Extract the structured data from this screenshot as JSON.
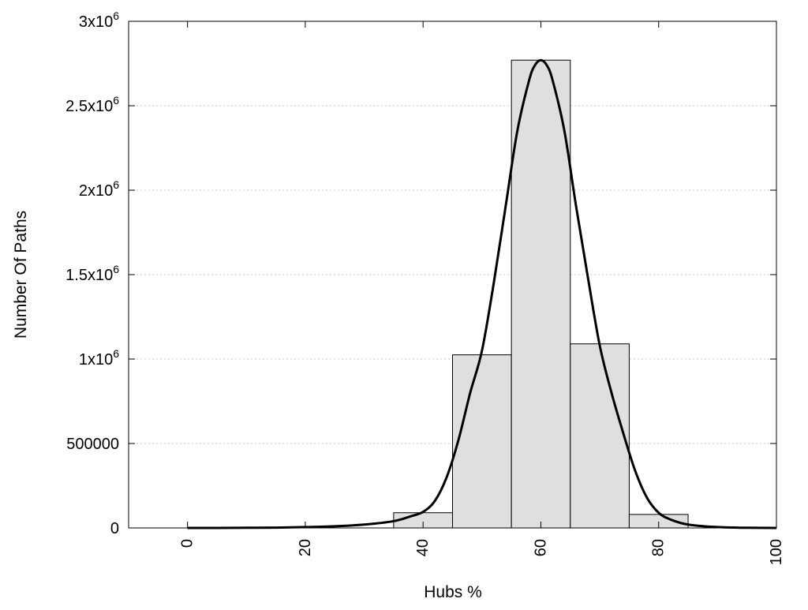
{
  "chart_data": {
    "type": "bar",
    "xlabel": "Hubs %",
    "ylabel": "Number Of Paths",
    "xlim": [
      -10,
      100
    ],
    "ylim": [
      0,
      3000000
    ],
    "x_ticks": [
      {
        "value": 0,
        "label": "0"
      },
      {
        "value": 20,
        "label": "20"
      },
      {
        "value": 40,
        "label": "40"
      },
      {
        "value": 60,
        "label": "60"
      },
      {
        "value": 80,
        "label": "80"
      },
      {
        "value": 100,
        "label": "100"
      }
    ],
    "y_ticks": [
      {
        "value": 0,
        "label": "0",
        "exp": ""
      },
      {
        "value": 500000,
        "label": "500000",
        "exp": ""
      },
      {
        "value": 1000000,
        "label": "1x10",
        "exp": "6"
      },
      {
        "value": 1500000,
        "label": "1.5x10",
        "exp": "6"
      },
      {
        "value": 2000000,
        "label": "2x10",
        "exp": "6"
      },
      {
        "value": 2500000,
        "label": "2.5x10",
        "exp": "6"
      },
      {
        "value": 3000000,
        "label": "3x10",
        "exp": "6"
      }
    ],
    "bar_width": 10,
    "bars": [
      {
        "x": 40,
        "value": 90000
      },
      {
        "x": 50,
        "value": 1025000
      },
      {
        "x": 60,
        "value": 2770000
      },
      {
        "x": 70,
        "value": 1090000
      },
      {
        "x": 80,
        "value": 80000
      }
    ],
    "curve": {
      "x": [
        0,
        5,
        10,
        15,
        20,
        25,
        30,
        35,
        38,
        40,
        42,
        44,
        46,
        48,
        50,
        52,
        54,
        56,
        58,
        59,
        60,
        61,
        62,
        64,
        66,
        68,
        70,
        72,
        74,
        76,
        78,
        80,
        82,
        85,
        90,
        95,
        100
      ],
      "y": [
        0,
        0,
        1000,
        2000,
        5000,
        10000,
        20000,
        40000,
        70000,
        95000,
        160000,
        300000,
        520000,
        800000,
        1050000,
        1450000,
        1900000,
        2350000,
        2650000,
        2740000,
        2770000,
        2740000,
        2650000,
        2350000,
        1900000,
        1480000,
        1080000,
        800000,
        560000,
        340000,
        180000,
        90000,
        50000,
        20000,
        5000,
        1000,
        0
      ]
    },
    "grid": {
      "horizontal": true,
      "vertical": false,
      "style": "dotted"
    },
    "colors": {
      "bar_fill": "#dfdfdf",
      "bar_stroke": "#000000",
      "curve": "#000000"
    }
  }
}
